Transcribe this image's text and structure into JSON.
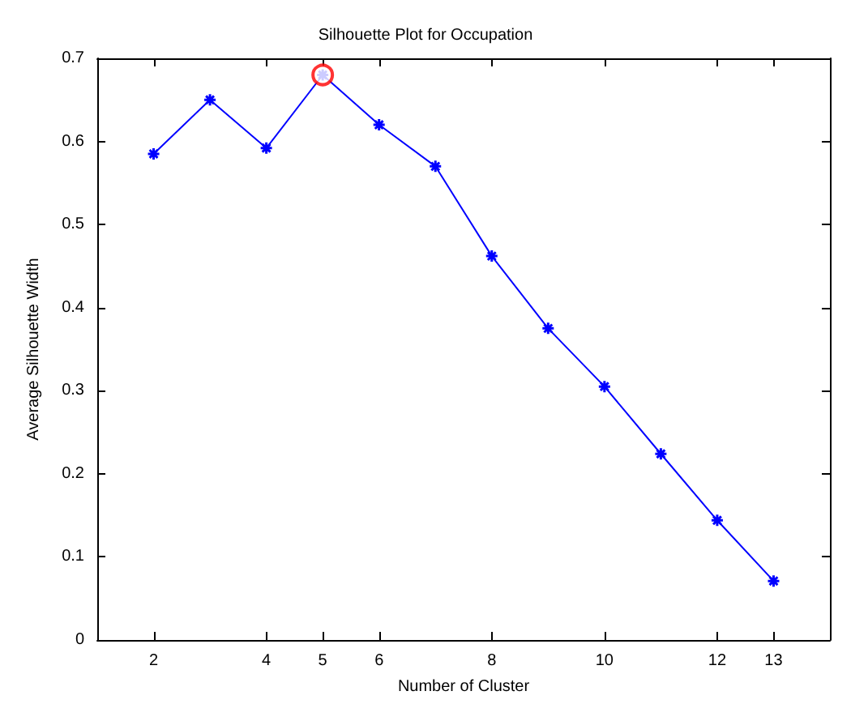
{
  "chart_data": {
    "type": "line",
    "title": "Silhouette Plot for Occupation",
    "xlabel": "Number of Cluster",
    "ylabel": "Average Silhouette Width",
    "xlim": [
      1,
      14
    ],
    "xticks": [
      2,
      4,
      5,
      6,
      8,
      10,
      12,
      13
    ],
    "ylim": [
      0,
      0.7
    ],
    "yticks": [
      0,
      0.1,
      0.2,
      0.3,
      0.4,
      0.5,
      0.6,
      0.7
    ],
    "grid": false,
    "series": [
      {
        "color": "#0000ff",
        "marker": "cross",
        "x": [
          2,
          3,
          4,
          5,
          6,
          7,
          8,
          9,
          10,
          11,
          12,
          13
        ],
        "values": [
          0.585,
          0.65,
          0.592,
          0.68,
          0.62,
          0.57,
          0.462,
          0.375,
          0.305,
          0.224,
          0.144,
          0.071
        ]
      },
      {
        "type": "scatter",
        "color": "#ff0000",
        "marker": "circle",
        "x": [
          5
        ],
        "values": [
          0.68
        ]
      }
    ]
  }
}
